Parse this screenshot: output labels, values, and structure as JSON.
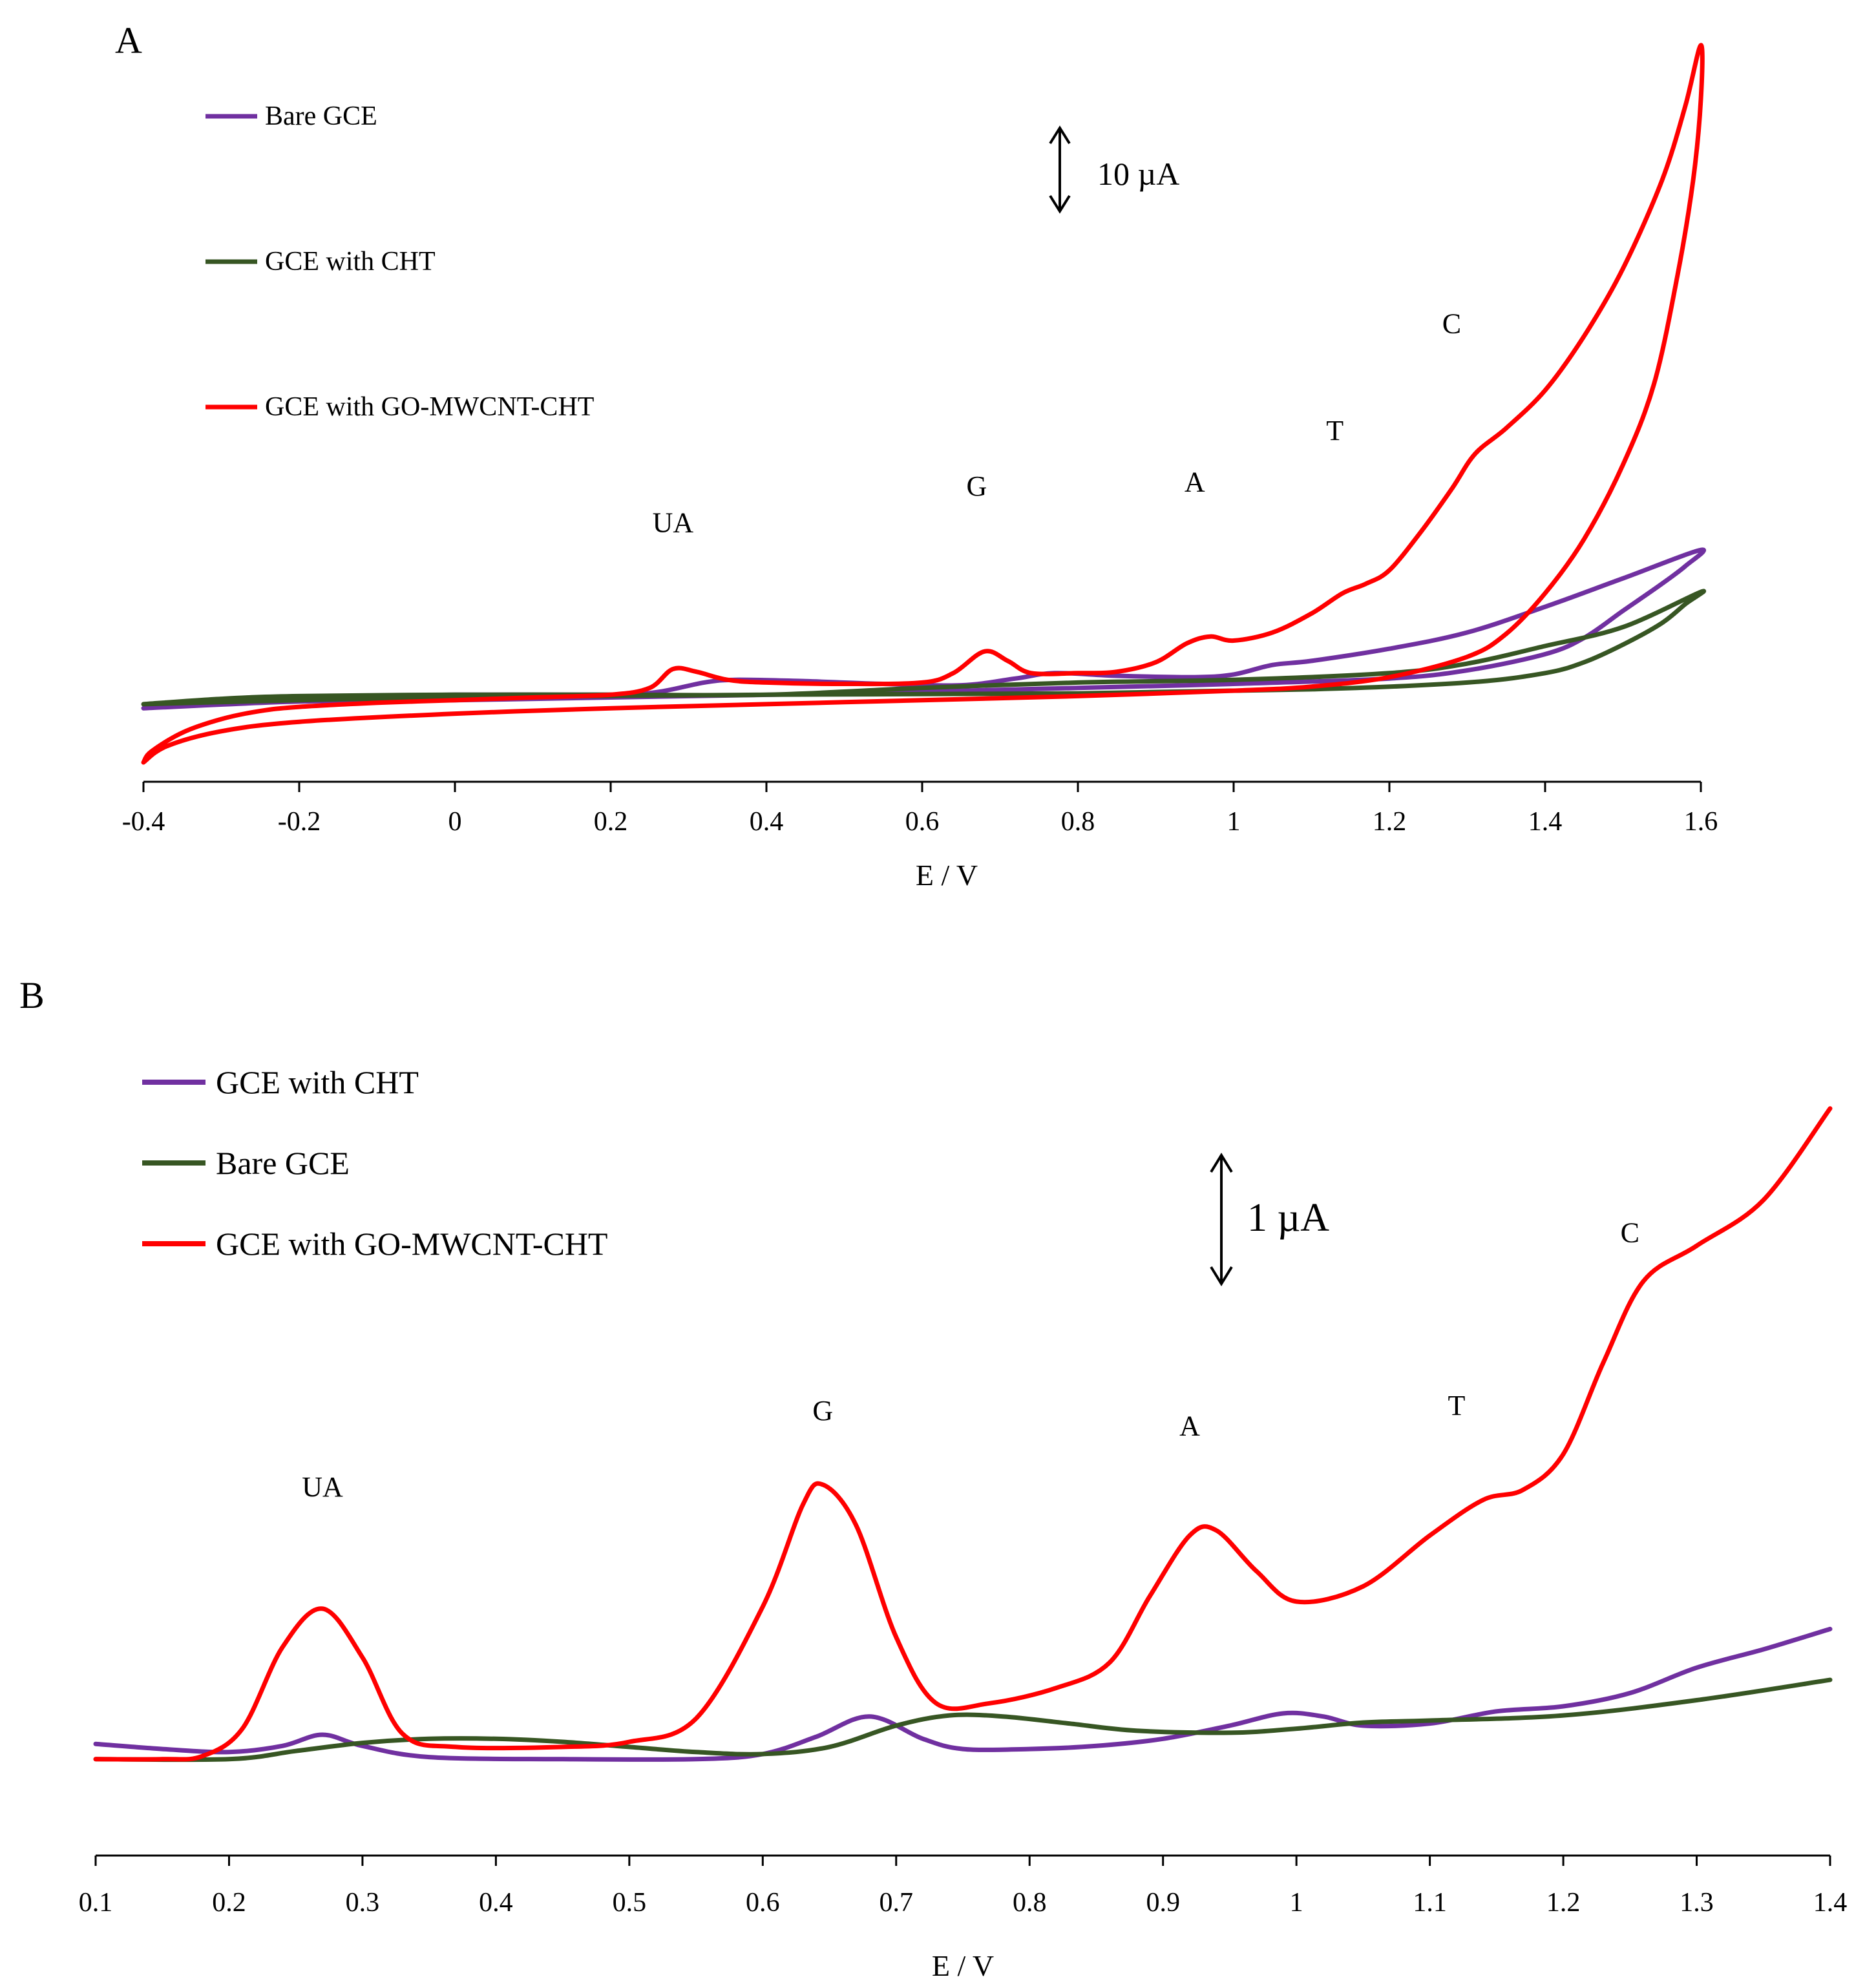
{
  "colors": {
    "purple": "#7030A0",
    "green": "#375623",
    "red": "#FF0000",
    "axis": "#000000"
  },
  "chart_data": [
    {
      "panel": "A",
      "type": "line",
      "title": "",
      "xlabel": "E / V",
      "ylabel": "",
      "xlim": [
        -0.4,
        1.6
      ],
      "ylim": [
        -3,
        50
      ],
      "x_ticks": [
        "-0.4",
        "-0.2",
        "0",
        "0.2",
        "0.4",
        "0.6",
        "0.8",
        "1",
        "1.2",
        "1.4",
        "1.6"
      ],
      "scale_bar": {
        "label": "10 µA",
        "value": 10
      },
      "legend": [
        "Bare GCE",
        "GCE with CHT",
        "GCE with GO-MWCNT-CHT"
      ],
      "peak_labels": [
        {
          "text": "UA",
          "x": 0.28,
          "y": 12.5
        },
        {
          "text": "G",
          "x": 0.67,
          "y": 15.2
        },
        {
          "text": "A",
          "x": 0.95,
          "y": 15.5
        },
        {
          "text": "T",
          "x": 1.13,
          "y": 19.3
        },
        {
          "text": "C",
          "x": 1.28,
          "y": 27.2
        }
      ],
      "series": [
        {
          "name": "Bare GCE",
          "color_key": "purple",
          "points": [
            [
              -0.4,
              1.0
            ],
            [
              -0.3,
              1.5
            ],
            [
              -0.2,
              1.8
            ],
            [
              0,
              2.0
            ],
            [
              0.2,
              2.0
            ],
            [
              0.26,
              2.2
            ],
            [
              0.32,
              2.9
            ],
            [
              0.36,
              3.1
            ],
            [
              0.45,
              3.0
            ],
            [
              0.55,
              2.8
            ],
            [
              0.65,
              2.7
            ],
            [
              0.72,
              3.2
            ],
            [
              0.77,
              3.6
            ],
            [
              0.85,
              3.4
            ],
            [
              0.95,
              3.3
            ],
            [
              1.0,
              3.5
            ],
            [
              1.05,
              4.2
            ],
            [
              1.1,
              4.5
            ],
            [
              1.2,
              5.4
            ],
            [
              1.3,
              6.6
            ],
            [
              1.4,
              8.5
            ],
            [
              1.5,
              10.6
            ],
            [
              1.6,
              12.7
            ],
            [
              1.58,
              11.5
            ],
            [
              1.55,
              10.2
            ],
            [
              1.5,
              8.2
            ],
            [
              1.45,
              6.2
            ],
            [
              1.4,
              5.0
            ],
            [
              1.3,
              3.8
            ],
            [
              1.2,
              3.2
            ],
            [
              1.0,
              2.8
            ],
            [
              0.8,
              2.5
            ],
            [
              0.5,
              2.1
            ],
            [
              0.2,
              1.8
            ],
            [
              0,
              1.6
            ],
            [
              -0.2,
              1.5
            ],
            [
              -0.4,
              1.0
            ]
          ]
        },
        {
          "name": "GCE with CHT",
          "color_key": "green",
          "points": [
            [
              -0.4,
              1.3
            ],
            [
              -0.3,
              1.7
            ],
            [
              -0.2,
              1.9
            ],
            [
              0,
              2.0
            ],
            [
              0.2,
              2.0
            ],
            [
              0.4,
              2.0
            ],
            [
              0.6,
              2.5
            ],
            [
              0.8,
              2.9
            ],
            [
              1.0,
              3.1
            ],
            [
              1.2,
              3.6
            ],
            [
              1.3,
              4.3
            ],
            [
              1.4,
              5.6
            ],
            [
              1.5,
              7.0
            ],
            [
              1.6,
              9.6
            ],
            [
              1.58,
              8.7
            ],
            [
              1.55,
              7.3
            ],
            [
              1.5,
              5.7
            ],
            [
              1.45,
              4.4
            ],
            [
              1.4,
              3.6
            ],
            [
              1.3,
              2.9
            ],
            [
              1.1,
              2.4
            ],
            [
              0.8,
              2.1
            ],
            [
              0.4,
              2.0
            ],
            [
              0,
              1.8
            ],
            [
              -0.2,
              1.6
            ],
            [
              -0.4,
              1.3
            ]
          ]
        },
        {
          "name": "GCE with GO-MWCNT-CHT",
          "color_key": "red",
          "points": [
            [
              -0.4,
              -3.0
            ],
            [
              -0.39,
              -2.2
            ],
            [
              -0.35,
              -0.8
            ],
            [
              -0.3,
              0.2
            ],
            [
              -0.25,
              0.8
            ],
            [
              -0.2,
              1.1
            ],
            [
              -0.1,
              1.4
            ],
            [
              0,
              1.6
            ],
            [
              0.1,
              1.8
            ],
            [
              0.2,
              2.0
            ],
            [
              0.25,
              2.5
            ],
            [
              0.28,
              3.9
            ],
            [
              0.31,
              3.7
            ],
            [
              0.35,
              3.1
            ],
            [
              0.4,
              2.9
            ],
            [
              0.5,
              2.8
            ],
            [
              0.6,
              2.9
            ],
            [
              0.64,
              3.6
            ],
            [
              0.68,
              5.2
            ],
            [
              0.71,
              4.5
            ],
            [
              0.74,
              3.6
            ],
            [
              0.8,
              3.6
            ],
            [
              0.85,
              3.7
            ],
            [
              0.9,
              4.4
            ],
            [
              0.94,
              5.8
            ],
            [
              0.97,
              6.3
            ],
            [
              1.0,
              6.0
            ],
            [
              1.05,
              6.6
            ],
            [
              1.1,
              8.0
            ],
            [
              1.14,
              9.5
            ],
            [
              1.17,
              10.2
            ],
            [
              1.2,
              11.2
            ],
            [
              1.24,
              14.0
            ],
            [
              1.28,
              17.2
            ],
            [
              1.31,
              19.8
            ],
            [
              1.35,
              21.7
            ],
            [
              1.4,
              24.5
            ],
            [
              1.45,
              28.5
            ],
            [
              1.5,
              33.5
            ],
            [
              1.55,
              40.0
            ],
            [
              1.58,
              45.5
            ],
            [
              1.6,
              50.0
            ],
            [
              1.6,
              46.0
            ],
            [
              1.59,
              40.0
            ],
            [
              1.57,
              33.0
            ],
            [
              1.54,
              25.0
            ],
            [
              1.5,
              19.0
            ],
            [
              1.45,
              13.5
            ],
            [
              1.4,
              9.5
            ],
            [
              1.35,
              6.5
            ],
            [
              1.3,
              4.8
            ],
            [
              1.2,
              3.3
            ],
            [
              1.1,
              2.6
            ],
            [
              1.0,
              2.3
            ],
            [
              0.8,
              1.9
            ],
            [
              0.6,
              1.6
            ],
            [
              0.4,
              1.3
            ],
            [
              0.2,
              1.0
            ],
            [
              0,
              0.6
            ],
            [
              -0.2,
              0.0
            ],
            [
              -0.3,
              -0.7
            ],
            [
              -0.37,
              -1.8
            ],
            [
              -0.4,
              -3.0
            ]
          ]
        }
      ]
    },
    {
      "panel": "B",
      "type": "line",
      "title": "",
      "xlabel": "E / V",
      "ylabel": "",
      "xlim": [
        0.1,
        1.4
      ],
      "ylim": [
        -0.3,
        6.5
      ],
      "x_ticks": [
        "0.1",
        "0.2",
        "0.3",
        "0.4",
        "0.5",
        "0.6",
        "0.7",
        "0.8",
        "0.9",
        "1",
        "1.1",
        "1.2",
        "1.3",
        "1.4"
      ],
      "scale_bar": {
        "label": "1 µA",
        "value": 1
      },
      "legend": [
        "GCE with CHT",
        "Bare GCE",
        "GCE with GO-MWCNT-CHT"
      ],
      "peak_labels": [
        {
          "text": "UA",
          "x": 0.27,
          "y": 2.3
        },
        {
          "text": "G",
          "x": 0.645,
          "y": 3.05
        },
        {
          "text": "A",
          "x": 0.92,
          "y": 2.9
        },
        {
          "text": "T",
          "x": 1.12,
          "y": 3.1
        },
        {
          "text": "C",
          "x": 1.25,
          "y": 4.8
        }
      ],
      "series": [
        {
          "name": "GCE with CHT",
          "color_key": "purple",
          "points": [
            [
              0.1,
              0.15
            ],
            [
              0.15,
              0.1
            ],
            [
              0.2,
              0.07
            ],
            [
              0.24,
              0.13
            ],
            [
              0.27,
              0.24
            ],
            [
              0.3,
              0.13
            ],
            [
              0.35,
              0.02
            ],
            [
              0.45,
              0.0
            ],
            [
              0.55,
              0.0
            ],
            [
              0.6,
              0.05
            ],
            [
              0.64,
              0.22
            ],
            [
              0.68,
              0.42
            ],
            [
              0.72,
              0.2
            ],
            [
              0.75,
              0.1
            ],
            [
              0.8,
              0.1
            ],
            [
              0.85,
              0.13
            ],
            [
              0.9,
              0.2
            ],
            [
              0.95,
              0.33
            ],
            [
              0.99,
              0.45
            ],
            [
              1.02,
              0.42
            ],
            [
              1.05,
              0.33
            ],
            [
              1.1,
              0.35
            ],
            [
              1.15,
              0.47
            ],
            [
              1.2,
              0.52
            ],
            [
              1.25,
              0.65
            ],
            [
              1.3,
              0.9
            ],
            [
              1.35,
              1.08
            ],
            [
              1.4,
              1.28
            ]
          ]
        },
        {
          "name": "Bare GCE",
          "color_key": "green",
          "points": [
            [
              0.1,
              0.0
            ],
            [
              0.2,
              0.0
            ],
            [
              0.25,
              0.08
            ],
            [
              0.3,
              0.16
            ],
            [
              0.35,
              0.2
            ],
            [
              0.4,
              0.2
            ],
            [
              0.45,
              0.17
            ],
            [
              0.5,
              0.12
            ],
            [
              0.55,
              0.07
            ],
            [
              0.6,
              0.05
            ],
            [
              0.65,
              0.12
            ],
            [
              0.7,
              0.33
            ],
            [
              0.74,
              0.43
            ],
            [
              0.78,
              0.42
            ],
            [
              0.83,
              0.35
            ],
            [
              0.88,
              0.28
            ],
            [
              0.95,
              0.26
            ],
            [
              1.0,
              0.3
            ],
            [
              1.05,
              0.36
            ],
            [
              1.1,
              0.38
            ],
            [
              1.2,
              0.43
            ],
            [
              1.3,
              0.58
            ],
            [
              1.4,
              0.78
            ]
          ]
        },
        {
          "name": "GCE with GO-MWCNT-CHT",
          "color_key": "red",
          "points": [
            [
              0.1,
              0.0
            ],
            [
              0.15,
              0.0
            ],
            [
              0.18,
              0.03
            ],
            [
              0.21,
              0.3
            ],
            [
              0.24,
              1.1
            ],
            [
              0.27,
              1.48
            ],
            [
              0.3,
              1.0
            ],
            [
              0.33,
              0.25
            ],
            [
              0.37,
              0.12
            ],
            [
              0.45,
              0.12
            ],
            [
              0.5,
              0.17
            ],
            [
              0.55,
              0.4
            ],
            [
              0.6,
              1.5
            ],
            [
              0.63,
              2.5
            ],
            [
              0.645,
              2.7
            ],
            [
              0.67,
              2.3
            ],
            [
              0.7,
              1.2
            ],
            [
              0.73,
              0.55
            ],
            [
              0.77,
              0.55
            ],
            [
              0.82,
              0.7
            ],
            [
              0.86,
              0.95
            ],
            [
              0.89,
              1.6
            ],
            [
              0.92,
              2.2
            ],
            [
              0.94,
              2.25
            ],
            [
              0.97,
              1.85
            ],
            [
              1.0,
              1.55
            ],
            [
              1.05,
              1.7
            ],
            [
              1.1,
              2.2
            ],
            [
              1.14,
              2.55
            ],
            [
              1.17,
              2.65
            ],
            [
              1.2,
              3.0
            ],
            [
              1.23,
              3.9
            ],
            [
              1.26,
              4.7
            ],
            [
              1.3,
              5.05
            ],
            [
              1.35,
              5.5
            ],
            [
              1.4,
              6.4
            ]
          ]
        }
      ]
    }
  ]
}
